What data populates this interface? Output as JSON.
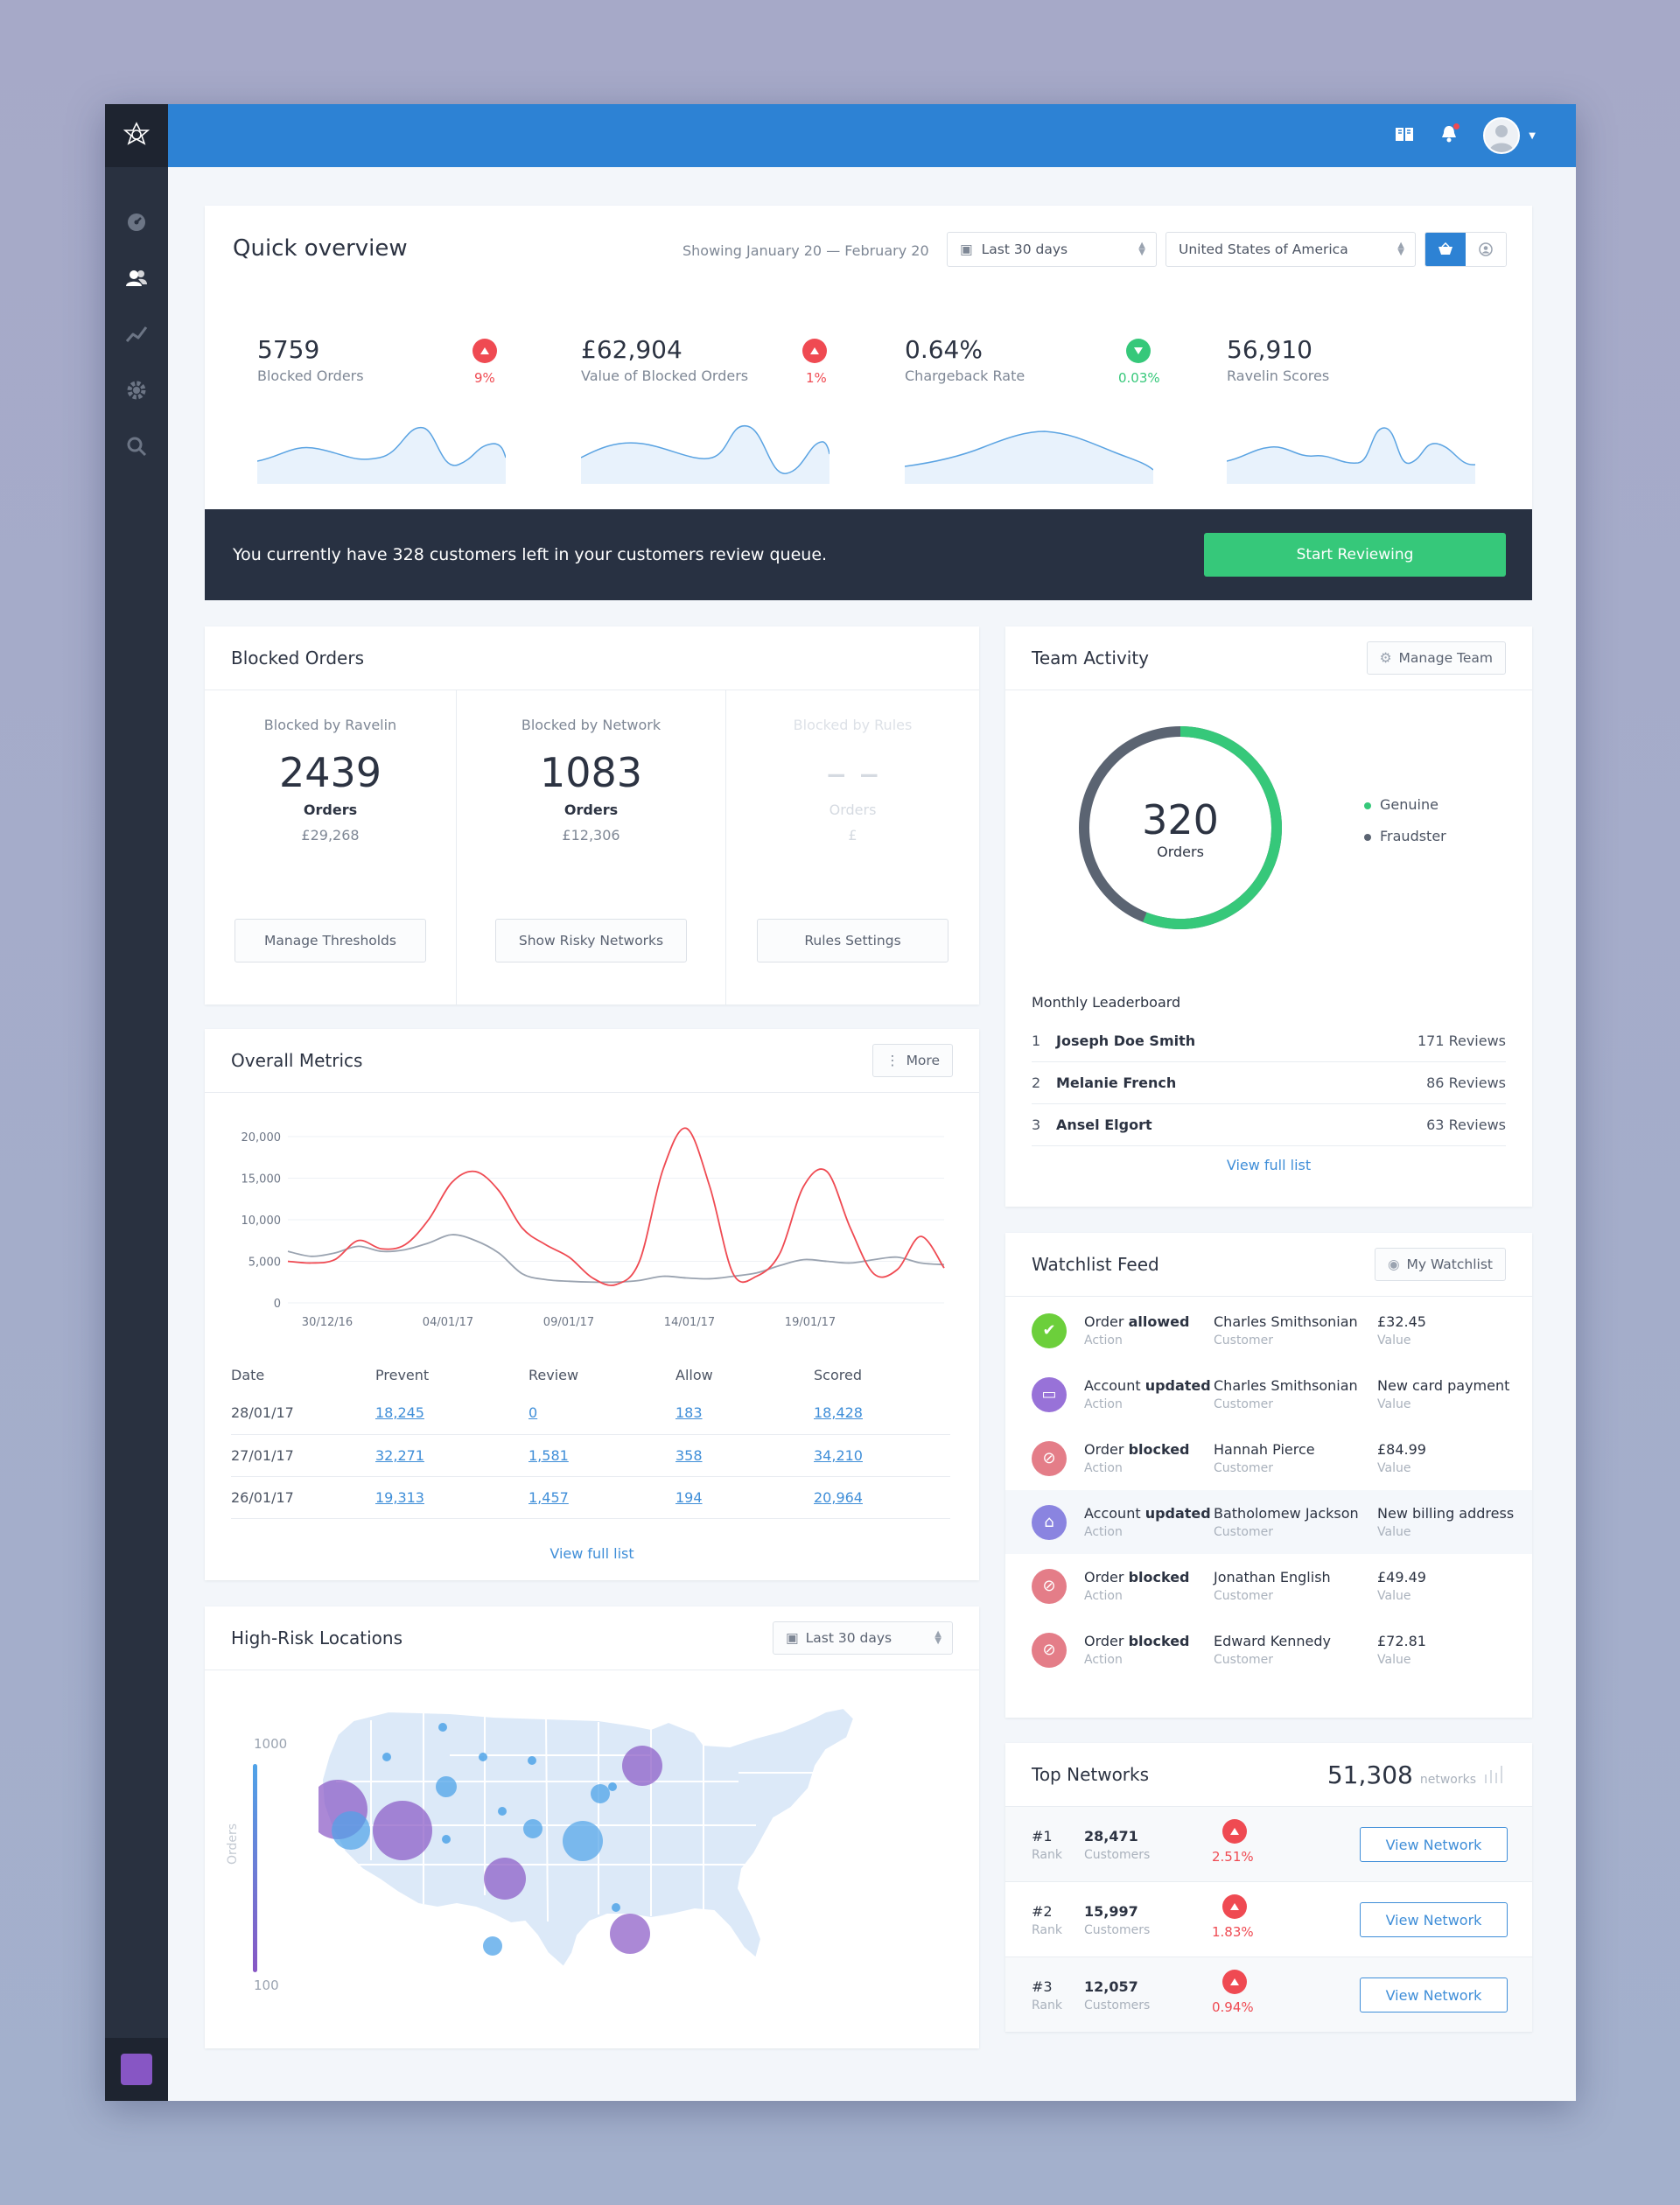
{
  "colors": {
    "primary": "#2d82d4",
    "sidebar": "#293140",
    "green": "#36c87a",
    "red": "#ef4a52",
    "purple": "#8756c4",
    "chart_red": "#ef4a52",
    "chart_grey": "#9aa3b0"
  },
  "sidebar": {
    "icons": [
      "dashboard-icon",
      "users-icon",
      "trend-icon",
      "settings-icon",
      "search-icon"
    ]
  },
  "topbar": {
    "icons": [
      "book-icon",
      "bell-icon",
      "avatar",
      "chevron-down-icon"
    ]
  },
  "overview": {
    "title": "Quick overview",
    "range_text": "Showing January 20 — February 20",
    "period_select": "Last 30 days",
    "country_select": "United States of America",
    "stats": [
      {
        "value": "5759",
        "label": "Blocked Orders",
        "change": "9%",
        "direction": "up"
      },
      {
        "value": "£62,904",
        "label": "Value of Blocked Orders",
        "change": "1%",
        "direction": "up"
      },
      {
        "value": "0.64%",
        "label": "Chargeback Rate",
        "change": "0.03%",
        "direction": "down"
      },
      {
        "value": "56,910",
        "label": "Ravelin Scores",
        "change": "",
        "direction": ""
      }
    ]
  },
  "review_banner": {
    "text": "You currently have 328 customers left in your customers review queue.",
    "button": "Start Reviewing"
  },
  "blocked_orders": {
    "title": "Blocked Orders",
    "columns": [
      {
        "label": "Blocked by Ravelin",
        "value": "2439",
        "unit": "Orders",
        "amount": "£29,268",
        "button": "Manage Thresholds"
      },
      {
        "label": "Blocked by Network",
        "value": "1083",
        "unit": "Orders",
        "amount": "£12,306",
        "button": "Show Risky Networks"
      },
      {
        "label": "Blocked by Rules",
        "value": "– –",
        "unit": "Orders",
        "amount": "£",
        "button": "Rules Settings"
      }
    ]
  },
  "team_activity": {
    "title": "Team Activity",
    "manage_button": "Manage Team",
    "donut": {
      "value": "320",
      "unit": "Orders",
      "genuine_fraction": 0.56
    },
    "legend": [
      {
        "label": "Genuine",
        "color": "#36c87a"
      },
      {
        "label": "Fraudster",
        "color": "#5b6472"
      }
    ],
    "leaderboard_title": "Monthly Leaderboard",
    "leaderboard": [
      {
        "rank": "1",
        "name": "Joseph Doe Smith",
        "reviews": "171 Reviews"
      },
      {
        "rank": "2",
        "name": "Melanie French",
        "reviews": "86 Reviews"
      },
      {
        "rank": "3",
        "name": "Ansel Elgort",
        "reviews": "63 Reviews"
      }
    ],
    "view_full": "View full list"
  },
  "overall_metrics": {
    "title": "Overall Metrics",
    "more_button": "More",
    "table_headers": [
      "Date",
      "Prevent",
      "Review",
      "Allow",
      "Scored"
    ],
    "rows": [
      [
        "28/01/17",
        "18,245",
        "0",
        "183",
        "18,428"
      ],
      [
        "27/01/17",
        "32,271",
        "1,581",
        "358",
        "34,210"
      ],
      [
        "26/01/17",
        "19,313",
        "1,457",
        "194",
        "20,964"
      ]
    ],
    "view_full": "View full list"
  },
  "chart_data": {
    "type": "line",
    "title": "",
    "xlabel": "",
    "ylabel": "",
    "ylim": [
      0,
      20000
    ],
    "y_ticks": [
      "20,000",
      "15,000",
      "10,000",
      "5,000",
      "0"
    ],
    "x_ticks": [
      "30/12/16",
      "04/01/17",
      "09/01/17",
      "14/01/17",
      "19/01/17"
    ],
    "x": [
      0,
      1,
      2,
      3,
      4,
      5,
      6,
      7,
      8,
      9,
      10,
      11,
      12,
      13,
      14,
      15,
      16,
      17,
      18,
      19,
      20,
      21,
      22,
      23,
      24,
      25,
      26,
      27,
      28
    ],
    "series": [
      {
        "values": [
          5000,
          4800,
          5200,
          7500,
          6500,
          7000,
          10000,
          14500,
          15800,
          13500,
          9000,
          7000,
          5500,
          3000,
          2200,
          5000,
          16000,
          21000,
          14000,
          3500,
          3200,
          6000,
          14000,
          15800,
          9000,
          3500,
          4000,
          8000,
          4200
        ],
        "color": "#ef4a52"
      },
      {
        "values": [
          6200,
          5600,
          6000,
          6800,
          6200,
          6400,
          7200,
          8200,
          7500,
          6000,
          3500,
          2800,
          2600,
          2500,
          2500,
          2700,
          3200,
          3000,
          2900,
          3200,
          3600,
          4500,
          5200,
          5000,
          4800,
          5200,
          5500,
          4800,
          4600
        ],
        "color": "#9aa3b0"
      }
    ]
  },
  "locations": {
    "title": "High-Risk Locations",
    "period_select": "Last 30 days",
    "scale_max": "1000",
    "scale_min": "100",
    "scale_label": "Orders"
  },
  "watchlist": {
    "title": "Watchlist Feed",
    "button": "My Watchlist",
    "rows": [
      {
        "icon": "check-icon",
        "action_prefix": "Order ",
        "action_bold": "allowed",
        "action_sub": "Action",
        "customer": "Charles Smithsonian",
        "customer_sub": "Customer",
        "value": "£32.45",
        "value_sub": "Value"
      },
      {
        "icon": "card-icon",
        "action_prefix": "Account ",
        "action_bold": "updated",
        "action_sub": "Action",
        "customer": "Charles Smithsonian",
        "customer_sub": "Customer",
        "value": "New card payment",
        "value_sub": "Value"
      },
      {
        "icon": "blocked-icon",
        "action_prefix": "Order ",
        "action_bold": "blocked",
        "action_sub": "Action",
        "customer": "Hannah Pierce",
        "customer_sub": "Customer",
        "value": "£84.99",
        "value_sub": "Value"
      },
      {
        "icon": "home-icon",
        "action_prefix": "Account ",
        "action_bold": "updated",
        "action_sub": "Action",
        "customer": "Batholomew Jackson",
        "customer_sub": "Customer",
        "value": "New billing address",
        "value_sub": "Value"
      },
      {
        "icon": "blocked-icon",
        "action_prefix": "Order ",
        "action_bold": "blocked",
        "action_sub": "Action",
        "customer": "Jonathan English",
        "customer_sub": "Customer",
        "value": "£49.49",
        "value_sub": "Value"
      },
      {
        "icon": "blocked-icon",
        "action_prefix": "Order ",
        "action_bold": "blocked",
        "action_sub": "Action",
        "customer": "Edward Kennedy",
        "customer_sub": "Customer",
        "value": "£72.81",
        "value_sub": "Value"
      }
    ]
  },
  "top_networks": {
    "title": "Top Networks",
    "total": "51,308",
    "total_unit": "networks",
    "rows": [
      {
        "rank": "#1",
        "rank_sub": "Rank",
        "customers": "28,471",
        "customers_sub": "Customers",
        "change": "2.51%",
        "button": "View Network"
      },
      {
        "rank": "#2",
        "rank_sub": "Rank",
        "customers": "15,997",
        "customers_sub": "Customers",
        "change": "1.83%",
        "button": "View Network"
      },
      {
        "rank": "#3",
        "rank_sub": "Rank",
        "customers": "12,057",
        "customers_sub": "Customers",
        "change": "0.94%",
        "button": "View Network"
      }
    ]
  }
}
